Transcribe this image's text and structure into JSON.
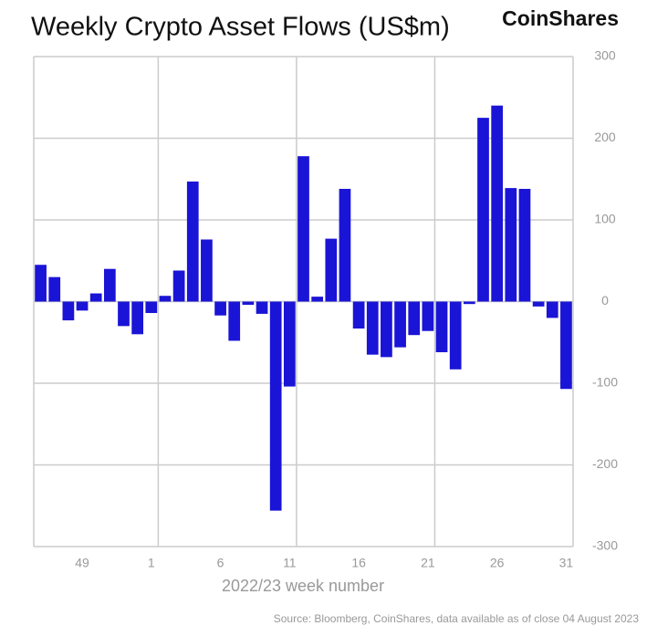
{
  "chart_data": {
    "type": "bar",
    "title": "Weekly Crypto Asset Flows (US$m)",
    "brand": "CoinShares",
    "x_label": "2022/23 week number",
    "source": "Source: Bloomberg, CoinShares, data available as of close 04 August 2023",
    "categories": [
      null,
      null,
      null,
      "49",
      null,
      null,
      null,
      null,
      "1",
      null,
      null,
      null,
      null,
      "6",
      null,
      null,
      null,
      null,
      "11",
      null,
      null,
      null,
      null,
      "16",
      null,
      null,
      null,
      null,
      "21",
      null,
      null,
      null,
      null,
      "26",
      null,
      null,
      null,
      null,
      "31"
    ],
    "values": [
      45,
      30,
      -23,
      -11,
      10,
      40,
      -30,
      -40,
      -14,
      7,
      38,
      147,
      76,
      -17,
      -48,
      -4,
      -15,
      -256,
      -104,
      178,
      6,
      77,
      138,
      -33,
      -65,
      -68,
      -56,
      -41,
      -36,
      -62,
      -83,
      -3,
      225,
      240,
      139,
      138,
      -6,
      -20,
      -107
    ],
    "color": "#1a14d6",
    "ylim": [
      -300,
      300
    ],
    "yticks": [
      -300,
      -200,
      -100,
      0,
      100,
      200,
      300
    ],
    "grid": true
  }
}
